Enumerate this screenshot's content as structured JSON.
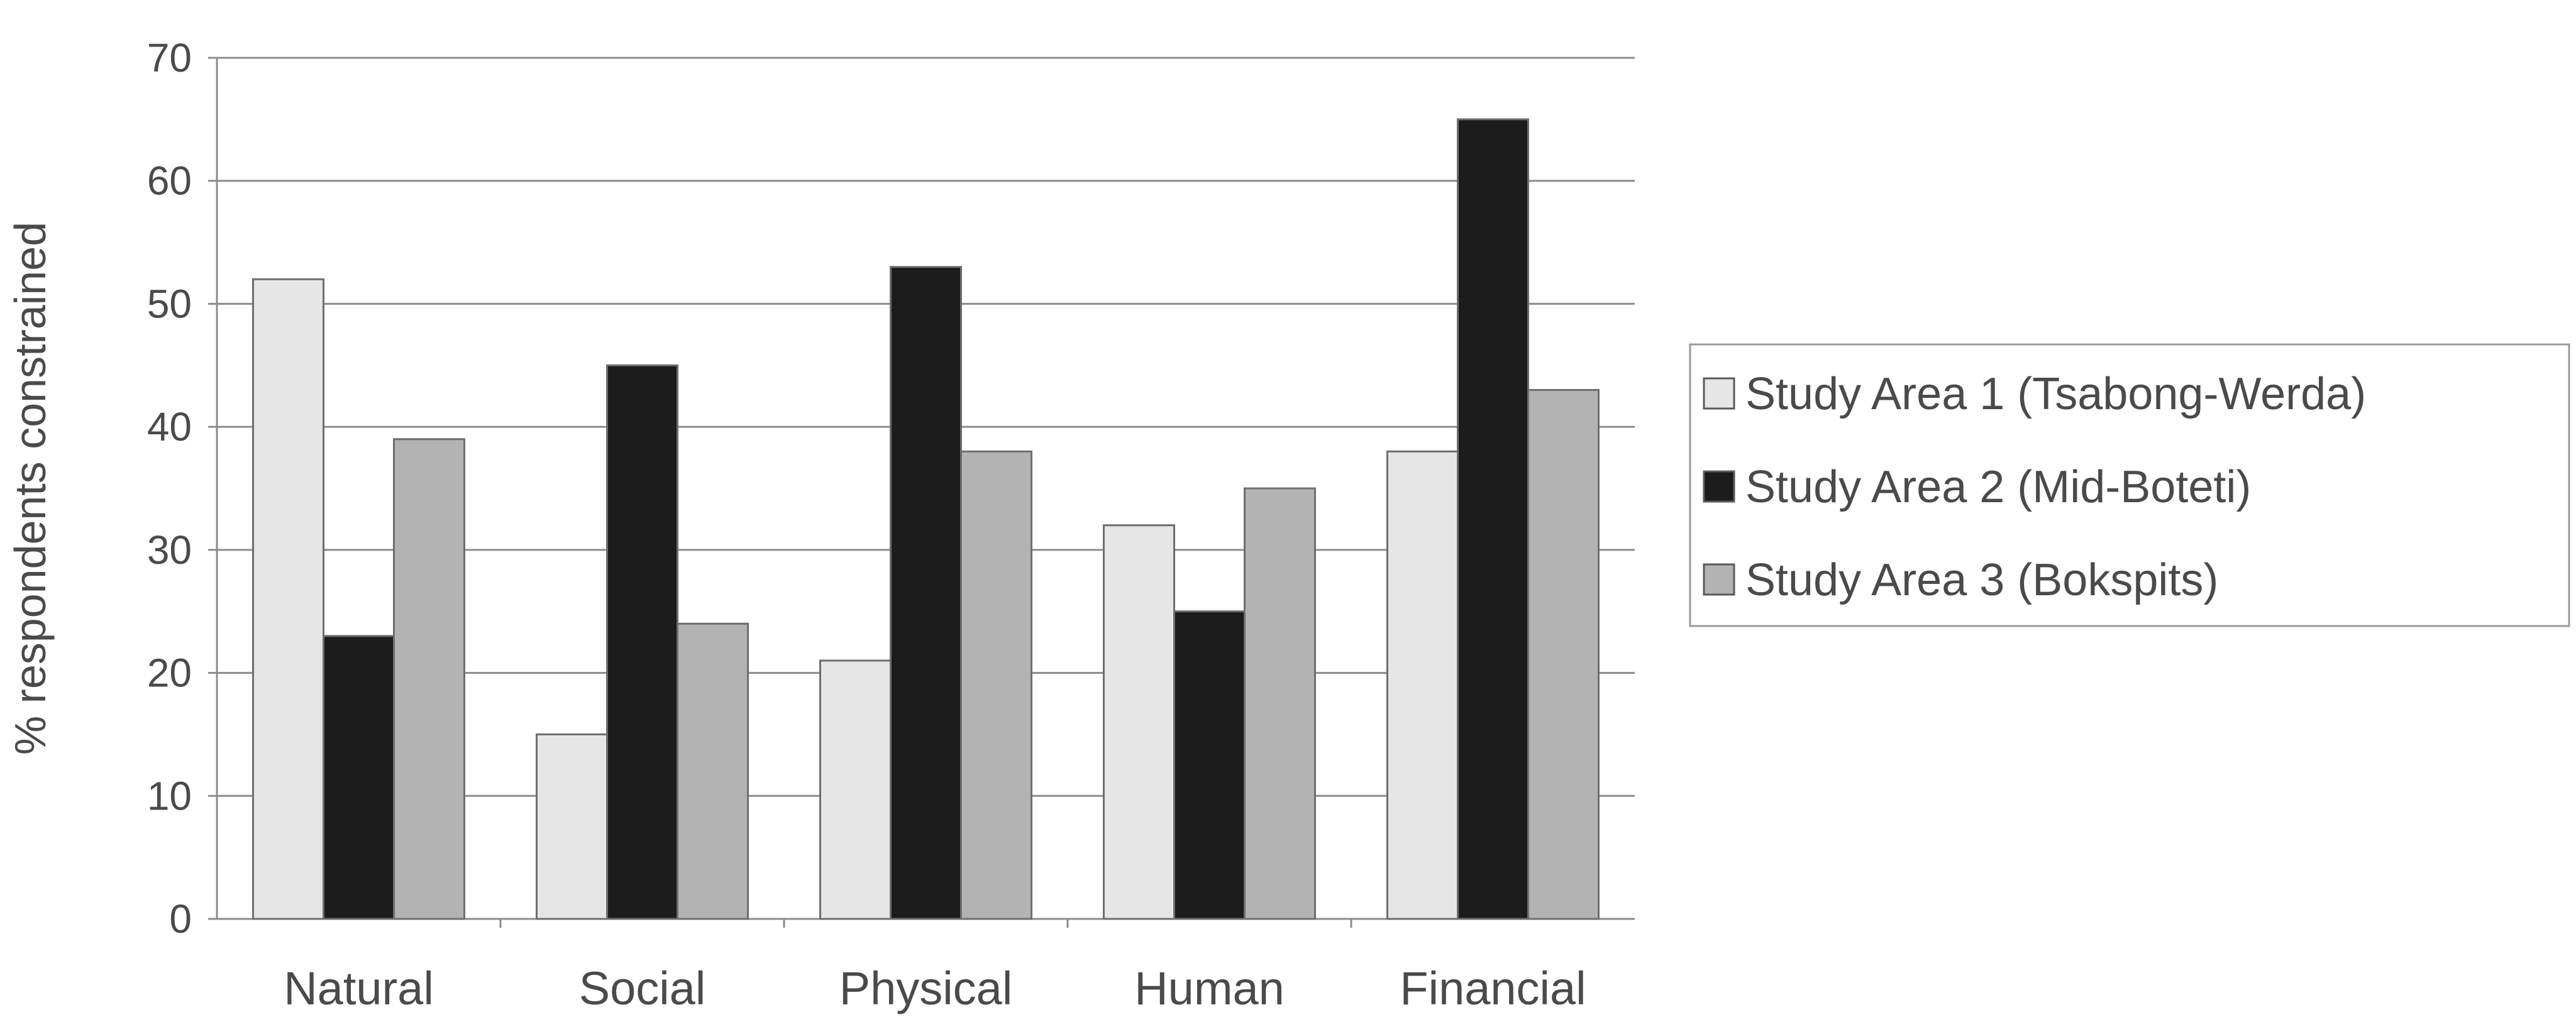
{
  "chart_data": {
    "type": "bar",
    "title": "",
    "xlabel": "",
    "ylabel": "% respondents constrained",
    "ylim": [
      0,
      70
    ],
    "yticks": [
      0,
      10,
      20,
      30,
      40,
      50,
      60,
      70
    ],
    "grid": true,
    "legend_position": "right",
    "categories": [
      "Natural",
      "Social",
      "Physical",
      "Human",
      "Financial"
    ],
    "series": [
      {
        "name": "Study Area 1 (Tsabong-Werda)",
        "values": [
          52,
          15,
          21,
          32,
          38
        ],
        "color": "#e6e6e6"
      },
      {
        "name": "Study Area 2 (Mid-Boteti)",
        "values": [
          23,
          45,
          53,
          25,
          65
        ],
        "color": "#1c1c1c"
      },
      {
        "name": "Study Area 3 (Bokspits)",
        "values": [
          39,
          24,
          38,
          35,
          43
        ],
        "color": "#b3b3b3"
      }
    ]
  }
}
